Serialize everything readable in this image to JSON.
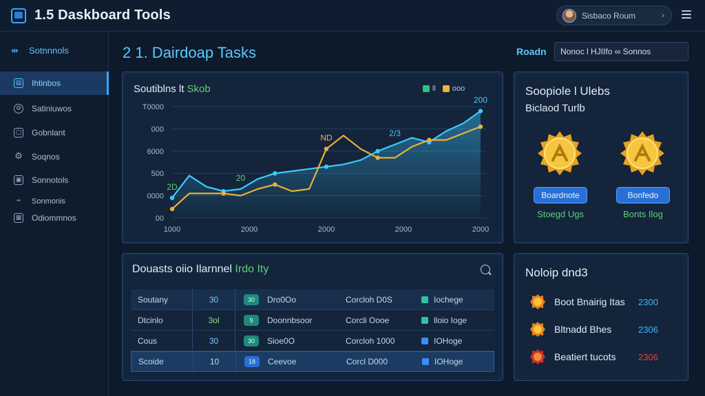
{
  "app": {
    "title": "1.5 Daskboard Tools",
    "logo_icon": "dashboard-icon"
  },
  "user": {
    "name": "Sisbaco Roum",
    "menu_icon": "chevron-right-icon"
  },
  "sidebar": {
    "header": "Sotnnnols",
    "items": [
      {
        "label": "Ihtinbos",
        "icon": "dashboard-icon",
        "active": true
      },
      {
        "label": "Satiniuwos",
        "icon": "settings-icon"
      },
      {
        "label": "Gobnlant",
        "icon": "folder-icon"
      },
      {
        "label": "Soqnos",
        "icon": "gear-icon"
      },
      {
        "label": "Sonnotols",
        "icon": "lock-icon"
      },
      {
        "label": "Sonmonis",
        "icon": "dot-icon"
      },
      {
        "label": "Odiommnos",
        "icon": "document-icon"
      }
    ]
  },
  "page": {
    "title": "2 1. Dairdoap Tasks"
  },
  "filter": {
    "label": "Roadn",
    "value": "Nonoc l HJIIfo ∞ Sonnos"
  },
  "chart": {
    "title": "Soutiblns lt",
    "title_accent": "Skob",
    "legend": [
      {
        "label": "ll",
        "color": "#2ec37a"
      },
      {
        "label": "ooo",
        "color": "#f1b33c"
      }
    ]
  },
  "chart_data": {
    "type": "line",
    "y_ticks": [
      "00",
      "0000",
      "500",
      "6000",
      "000",
      "T0000"
    ],
    "x_ticks": [
      "1000",
      "2000",
      "2000",
      "2000",
      "2000"
    ],
    "series": [
      {
        "values": [
          18,
          38,
          28,
          24,
          26,
          35,
          40,
          42,
          44,
          46,
          48,
          52,
          60,
          66,
          72,
          68,
          78,
          85,
          96
        ]
      },
      {
        "values": [
          8,
          22,
          22,
          22,
          20,
          26,
          30,
          24,
          26,
          62,
          74,
          62,
          54,
          54,
          64,
          70,
          70,
          76,
          82
        ]
      }
    ],
    "annotations": [
      {
        "text": "2D",
        "color": "#5fd07a"
      },
      {
        "text": "20",
        "color": "#5fd07a"
      },
      {
        "text": "ND",
        "color": "#f1b33c"
      },
      {
        "text": "2/3",
        "color": "#3ec9ff"
      },
      {
        "text": "200",
        "color": "#3ec9ff"
      }
    ],
    "colors": [
      "#3ec9ff",
      "#e8b23a"
    ]
  },
  "badges": {
    "title": "Soopiole l Ulebs",
    "subtitle": "Biclaod Turlb",
    "items": [
      {
        "button": "Boardnote",
        "caption": "Stoegd Ugs"
      },
      {
        "button": "Bonfedo",
        "caption": "Bonts Ilog"
      }
    ]
  },
  "tasks": {
    "title": "Douasts oiio Ilarnnel",
    "title_accent": "Irdo Ity",
    "rows": [
      {
        "name": "Soutany",
        "num": "30",
        "task": "Dro0Oo",
        "chip": "30",
        "date": "Corcloh D0S",
        "status": "Iochege"
      },
      {
        "name": "Dtcinlo",
        "num": "3ol",
        "task": "Doonnbsoor",
        "chip": "9",
        "date": "Corcli Oooe",
        "status": "lloio Ioge"
      },
      {
        "name": "Cous",
        "num": "30",
        "task": "Sioe0O",
        "chip": "30",
        "date": "Corcloh 1000",
        "status": "IOHoge"
      },
      {
        "name": "Scoide",
        "num": "10",
        "task": "Ceevoe",
        "chip": "18",
        "date": "Corcl D000",
        "status": "IOHoge"
      }
    ]
  },
  "leaderboard": {
    "title": "Noloip dnd3",
    "rows": [
      {
        "name": "Boot Bnairig Itas",
        "score": "2300",
        "color": "#3eb6ff"
      },
      {
        "name": "Bltnadd Bhes",
        "score": "2306",
        "color": "#3eb6ff"
      },
      {
        "name": "Beatiert tucots",
        "score": "2306",
        "color": "#e0453e"
      }
    ]
  }
}
